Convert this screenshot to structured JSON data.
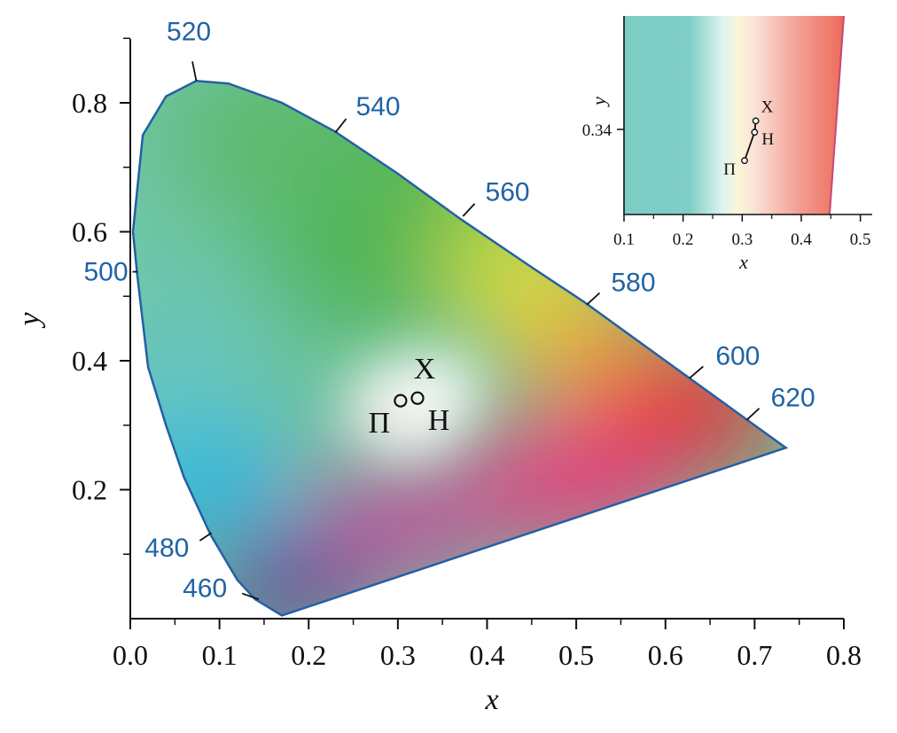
{
  "chart_data": [
    {
      "type": "scatter",
      "xlabel": "x",
      "ylabel": "y",
      "xlim": [
        0.0,
        0.8
      ],
      "ylim": [
        0.0,
        0.9
      ],
      "x_ticks": [
        "0.0",
        "0.1",
        "0.2",
        "0.3",
        "0.4",
        "0.5",
        "0.6",
        "0.7",
        "0.8"
      ],
      "y_ticks": [
        "0.2",
        "0.4",
        "0.6",
        "0.8"
      ],
      "x_tick_values": [
        0.0,
        0.1,
        0.2,
        0.3,
        0.4,
        0.5,
        0.6,
        0.7,
        0.8
      ],
      "y_tick_values": [
        0.2,
        0.4,
        0.6,
        0.8
      ],
      "locus": [
        {
          "x": 0.17,
          "y": 0.005
        },
        {
          "x": 0.14,
          "y": 0.03
        },
        {
          "x": 0.12,
          "y": 0.06
        },
        {
          "x": 0.09,
          "y": 0.13
        },
        {
          "x": 0.06,
          "y": 0.22
        },
        {
          "x": 0.04,
          "y": 0.3
        },
        {
          "x": 0.02,
          "y": 0.39
        },
        {
          "x": 0.008,
          "y": 0.53
        },
        {
          "x": 0.003,
          "y": 0.6
        },
        {
          "x": 0.014,
          "y": 0.75
        },
        {
          "x": 0.04,
          "y": 0.81
        },
        {
          "x": 0.074,
          "y": 0.834
        },
        {
          "x": 0.11,
          "y": 0.83
        },
        {
          "x": 0.17,
          "y": 0.8
        },
        {
          "x": 0.23,
          "y": 0.755
        },
        {
          "x": 0.3,
          "y": 0.69
        },
        {
          "x": 0.37,
          "y": 0.62
        },
        {
          "x": 0.45,
          "y": 0.545
        },
        {
          "x": 0.51,
          "y": 0.49
        },
        {
          "x": 0.6,
          "y": 0.4
        },
        {
          "x": 0.65,
          "y": 0.35
        },
        {
          "x": 0.69,
          "y": 0.31
        },
        {
          "x": 0.735,
          "y": 0.265
        }
      ],
      "wavelengths": [
        {
          "label": "460",
          "x": 0.144,
          "y": 0.03
        },
        {
          "label": "480",
          "x": 0.091,
          "y": 0.133
        },
        {
          "label": "500",
          "x": 0.008,
          "y": 0.538
        },
        {
          "label": "520",
          "x": 0.074,
          "y": 0.834
        },
        {
          "label": "540",
          "x": 0.23,
          "y": 0.754
        },
        {
          "label": "560",
          "x": 0.373,
          "y": 0.624
        },
        {
          "label": "580",
          "x": 0.512,
          "y": 0.487
        },
        {
          "label": "600",
          "x": 0.627,
          "y": 0.373
        },
        {
          "label": "620",
          "x": 0.691,
          "y": 0.308
        }
      ],
      "points": [
        {
          "label": "Х",
          "x": 0.322,
          "y": 0.342
        },
        {
          "label": "Н",
          "x": 0.322,
          "y": 0.342
        },
        {
          "label": "П",
          "x": 0.303,
          "y": 0.338
        }
      ]
    },
    {
      "type": "scatter",
      "xlabel": "x",
      "ylabel": "y",
      "xlim": [
        0.1,
        0.52
      ],
      "x_ticks": [
        "0.1",
        "0.2",
        "0.3",
        "0.4",
        "0.5"
      ],
      "x_tick_values": [
        0.1,
        0.2,
        0.3,
        0.4,
        0.5
      ],
      "y_ticks": [
        "0.34"
      ],
      "y_tick_values": [
        0.34
      ],
      "ylim": [
        0.31,
        0.38
      ],
      "points": [
        {
          "label": "Х",
          "x": 0.323,
          "y": 0.343
        },
        {
          "label": "Н",
          "x": 0.321,
          "y": 0.339
        },
        {
          "label": "П",
          "x": 0.304,
          "y": 0.329
        }
      ]
    }
  ]
}
